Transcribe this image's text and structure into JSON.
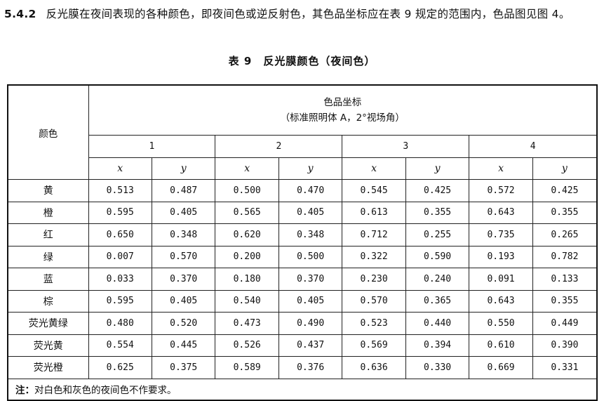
{
  "paragraph": {
    "number": "5.4.2",
    "text": "反光膜在夜间表现的各种颜色，即夜间色或逆反射色，其色品坐标应在表 9 规定的范围内，色品图见图 4。"
  },
  "table": {
    "title": "表 9　反光膜颜色（夜间色）",
    "color_header": "颜色",
    "coord_header": "色品坐标",
    "coord_subheader": "（标准照明体 A，2°视场角）",
    "points": [
      "1",
      "2",
      "3",
      "4"
    ],
    "x_label": "x",
    "y_label": "y",
    "rows": [
      {
        "color": "黄",
        "values": [
          "0.513",
          "0.487",
          "0.500",
          "0.470",
          "0.545",
          "0.425",
          "0.572",
          "0.425"
        ]
      },
      {
        "color": "橙",
        "values": [
          "0.595",
          "0.405",
          "0.565",
          "0.405",
          "0.613",
          "0.355",
          "0.643",
          "0.355"
        ]
      },
      {
        "color": "红",
        "values": [
          "0.650",
          "0.348",
          "0.620",
          "0.348",
          "0.712",
          "0.255",
          "0.735",
          "0.265"
        ]
      },
      {
        "color": "绿",
        "values": [
          "0.007",
          "0.570",
          "0.200",
          "0.500",
          "0.322",
          "0.590",
          "0.193",
          "0.782"
        ]
      },
      {
        "color": "蓝",
        "values": [
          "0.033",
          "0.370",
          "0.180",
          "0.370",
          "0.230",
          "0.240",
          "0.091",
          "0.133"
        ]
      },
      {
        "color": "棕",
        "values": [
          "0.595",
          "0.405",
          "0.540",
          "0.405",
          "0.570",
          "0.365",
          "0.643",
          "0.355"
        ]
      },
      {
        "color": "荧光黄绿",
        "values": [
          "0.480",
          "0.520",
          "0.473",
          "0.490",
          "0.523",
          "0.440",
          "0.550",
          "0.449"
        ]
      },
      {
        "color": "荧光黄",
        "values": [
          "0.554",
          "0.445",
          "0.526",
          "0.437",
          "0.569",
          "0.394",
          "0.610",
          "0.390"
        ]
      },
      {
        "color": "荧光橙",
        "values": [
          "0.625",
          "0.375",
          "0.589",
          "0.376",
          "0.636",
          "0.330",
          "0.669",
          "0.331"
        ]
      }
    ],
    "note_label": "注：",
    "note_text": "对白色和灰色的夜间色不作要求。"
  }
}
